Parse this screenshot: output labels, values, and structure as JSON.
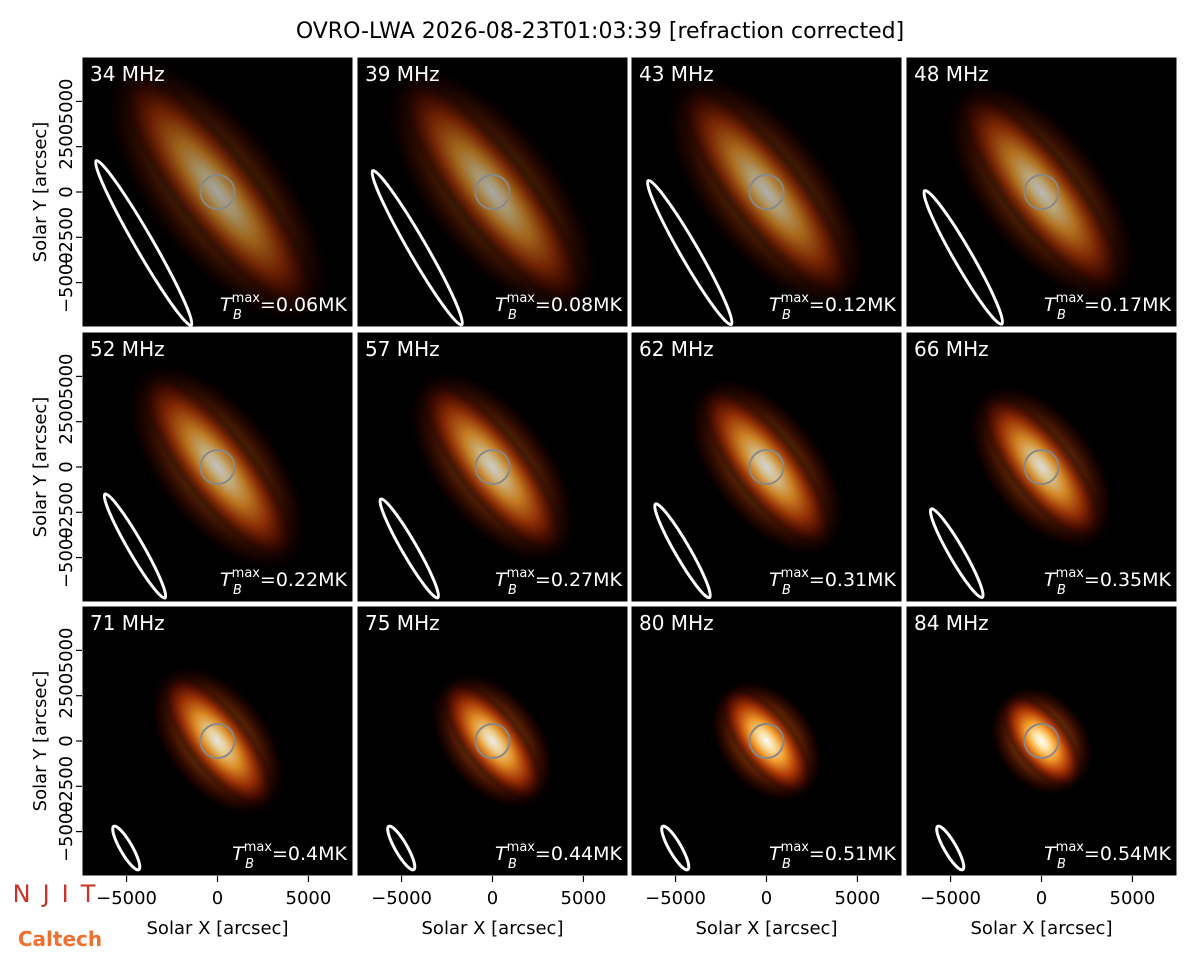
{
  "chart_data": {
    "type": "image-grid",
    "title": "OVRO-LWA 2026-08-23T01:03:39 [refraction corrected]",
    "xlabel": "Solar X [arcsec]",
    "ylabel": "Solar Y [arcsec]",
    "xlim": [
      -7450,
      7450
    ],
    "ylim": [
      -7450,
      7450
    ],
    "xticks": [
      {
        "value": -5000,
        "label": "−5000"
      },
      0,
      5000
    ],
    "yticks": [
      {
        "value": -5000,
        "label": "−5000"
      },
      {
        "value": -2500,
        "label": "−2500"
      },
      0,
      2500,
      5000
    ],
    "tb_symbol": "T",
    "tb_sub": "B",
    "tb_sup": "max",
    "tb_eq": "=",
    "panels": [
      {
        "title": "34 MHz",
        "tb_max": 0.06,
        "tb_max_label": "0.06MK"
      },
      {
        "title": "39 MHz",
        "tb_max": 0.08,
        "tb_max_label": "0.08MK"
      },
      {
        "title": "43 MHz",
        "tb_max": 0.12,
        "tb_max_label": "0.12MK"
      },
      {
        "title": "48 MHz",
        "tb_max": 0.17,
        "tb_max_label": "0.17MK"
      },
      {
        "title": "52 MHz",
        "tb_max": 0.22,
        "tb_max_label": "0.22MK"
      },
      {
        "title": "57 MHz",
        "tb_max": 0.27,
        "tb_max_label": "0.27MK"
      },
      {
        "title": "62 MHz",
        "tb_max": 0.31,
        "tb_max_label": "0.31MK"
      },
      {
        "title": "66 MHz",
        "tb_max": 0.35,
        "tb_max_label": "0.35MK"
      },
      {
        "title": "71 MHz",
        "tb_max": 0.4,
        "tb_max_label": "0.4MK"
      },
      {
        "title": "75 MHz",
        "tb_max": 0.44,
        "tb_max_label": "0.44MK"
      },
      {
        "title": "80 MHz",
        "tb_max": 0.51,
        "tb_max_label": "0.51MK"
      },
      {
        "title": "84 MHz",
        "tb_max": 0.54,
        "tb_max_label": "0.54MK"
      }
    ]
  },
  "logos": {
    "top": "NJIT",
    "bottom": "Caltech"
  }
}
